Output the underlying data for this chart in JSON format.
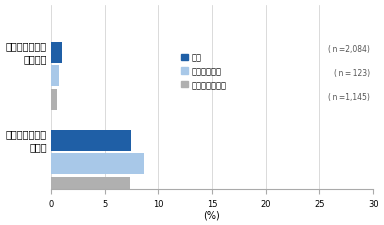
{
  "categories": [
    "歯科医院通院を\n増やした",
    "歯科医院通院を\nやめた"
  ],
  "series": {
    "全体": [
      1.0,
      7.5
    ],
    "在宅勤務中心": [
      0.8,
      8.7
    ],
    "非在宅勤務中心": [
      0.6,
      7.4
    ]
  },
  "colors": {
    "全体": "#1F5FA6",
    "在宅勤務中心": "#A8C8E8",
    "非在宅勤務中心": "#B0B0B0"
  },
  "legend_labels": [
    "全体",
    "在宅勤務中心",
    "非在宅勤務中心"
  ],
  "n_labels": [
    "( n =2,084)",
    "( n = 123)",
    "( n =1,145)"
  ],
  "xlim": [
    0,
    30
  ],
  "xticks": [
    0,
    5,
    10,
    15,
    20,
    25,
    30
  ],
  "xlabel": "(%)",
  "bar_height": 0.12,
  "background_color": "#ffffff"
}
